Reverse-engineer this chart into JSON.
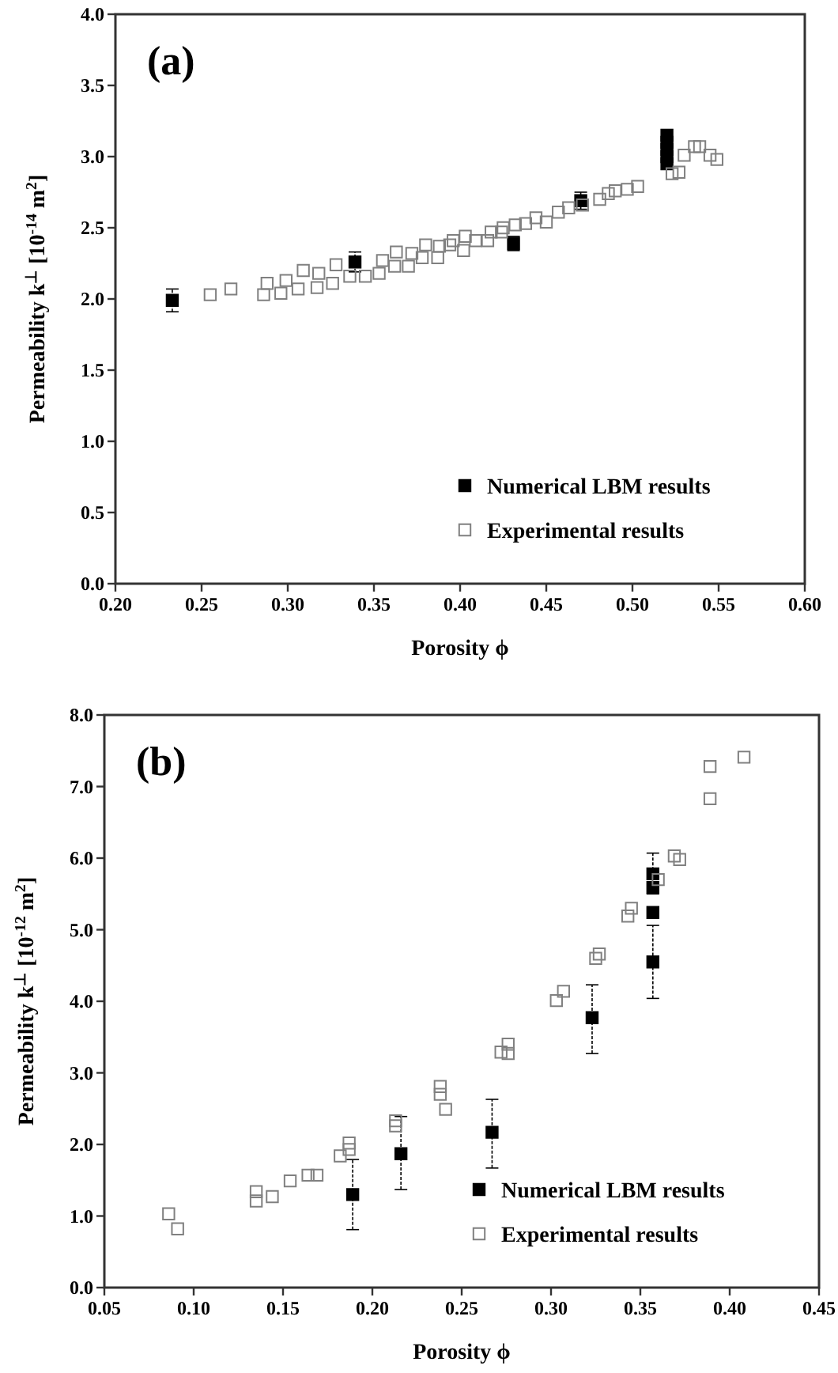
{
  "chart_data": [
    {
      "type": "scatter",
      "title": "(a)",
      "xlabel": "Porosity ϕ",
      "ylabel": "Permeability k$^{⊥}$ [10$^{-14}$ m$^{2}$]",
      "marker": "square",
      "legend": "bottom right",
      "grid": false,
      "xlim": [
        0.2,
        0.6
      ],
      "xticks": [
        {
          "value": 0.2,
          "label": "0.20"
        },
        {
          "value": 0.25,
          "label": "0.25"
        },
        {
          "value": 0.3,
          "label": "0.30"
        },
        {
          "value": 0.35,
          "label": "0.35"
        },
        {
          "value": 0.4,
          "label": "0.40"
        },
        {
          "value": 0.45,
          "label": "0.45"
        },
        {
          "value": 0.5,
          "label": "0.50"
        },
        {
          "value": 0.55,
          "label": "0.55"
        },
        {
          "value": 0.6,
          "label": "0.60"
        }
      ],
      "ylim": [
        0,
        4
      ],
      "yticks": [
        {
          "value": 0,
          "label": "0.0"
        },
        {
          "value": 0.5,
          "label": "0.5"
        },
        {
          "value": 1,
          "label": "1.0"
        },
        {
          "value": 1.5,
          "label": "1.5"
        },
        {
          "value": 2,
          "label": "2.0"
        },
        {
          "value": 2.5,
          "label": "2.5"
        },
        {
          "value": 3,
          "label": "3.0"
        },
        {
          "value": 3.5,
          "label": "3.5"
        },
        {
          "value": 4,
          "label": "4.0"
        }
      ],
      "series": [
        {
          "name": "Numerical LBM results",
          "color": "#000000",
          "x": [
            0.233,
            0.339,
            0.431,
            0.47,
            0.52,
            0.52,
            0.52,
            0.52,
            0.52
          ],
          "values": [
            1.99,
            2.26,
            2.39,
            2.69,
            3.15,
            3.1,
            3.05,
            3.0,
            2.95
          ],
          "errors": [
            0.08,
            0.07,
            0.05,
            0.06,
            null,
            null,
            null,
            null,
            null
          ]
        },
        {
          "name": "Experimental results",
          "color": "#808080",
          "x": [
            0.255,
            0.267,
            0.286,
            0.288,
            0.296,
            0.299,
            0.306,
            0.309,
            0.317,
            0.318,
            0.326,
            0.328,
            0.336,
            0.345,
            0.353,
            0.355,
            0.362,
            0.363,
            0.37,
            0.372,
            0.378,
            0.38,
            0.387,
            0.388,
            0.394,
            0.396,
            0.402,
            0.403,
            0.409,
            0.416,
            0.418,
            0.424,
            0.425,
            0.432,
            0.438,
            0.444,
            0.45,
            0.457,
            0.463,
            0.471,
            0.481,
            0.486,
            0.49,
            0.497,
            0.503,
            0.523,
            0.527,
            0.53,
            0.536,
            0.539,
            0.545,
            0.549
          ],
          "values": [
            2.03,
            2.07,
            2.03,
            2.11,
            2.04,
            2.13,
            2.07,
            2.2,
            2.08,
            2.18,
            2.11,
            2.24,
            2.16,
            2.16,
            2.18,
            2.27,
            2.23,
            2.33,
            2.23,
            2.32,
            2.29,
            2.38,
            2.29,
            2.37,
            2.38,
            2.41,
            2.34,
            2.44,
            2.41,
            2.41,
            2.47,
            2.47,
            2.5,
            2.52,
            2.53,
            2.57,
            2.54,
            2.61,
            2.64,
            2.66,
            2.7,
            2.74,
            2.76,
            2.77,
            2.79,
            2.88,
            2.89,
            3.01,
            3.07,
            3.07,
            3.01,
            2.98
          ]
        }
      ]
    },
    {
      "type": "scatter",
      "title": "(b)",
      "xlabel": "Porosity ϕ",
      "ylabel": "Permeability k$^{⊥}$ [10$^{-12}$ m$^{2}$]",
      "marker": "square",
      "legend": "bottom right",
      "grid": false,
      "xlim": [
        0.05,
        0.45
      ],
      "xticks": [
        {
          "value": 0.05,
          "label": "0.05"
        },
        {
          "value": 0.1,
          "label": "0.10"
        },
        {
          "value": 0.15,
          "label": "0.15"
        },
        {
          "value": 0.2,
          "label": "0.20"
        },
        {
          "value": 0.25,
          "label": "0.25"
        },
        {
          "value": 0.3,
          "label": "0.30"
        },
        {
          "value": 0.35,
          "label": "0.35"
        },
        {
          "value": 0.4,
          "label": "0.40"
        },
        {
          "value": 0.45,
          "label": "0.45"
        }
      ],
      "ylim": [
        0,
        8
      ],
      "yticks": [
        {
          "value": 0,
          "label": "0.0"
        },
        {
          "value": 1,
          "label": "1.0"
        },
        {
          "value": 2,
          "label": "2.0"
        },
        {
          "value": 3,
          "label": "3.0"
        },
        {
          "value": 4,
          "label": "4.0"
        },
        {
          "value": 5,
          "label": "5.0"
        },
        {
          "value": 6,
          "label": "6.0"
        },
        {
          "value": 7,
          "label": "7.0"
        },
        {
          "value": 8,
          "label": "8.0"
        }
      ],
      "series": [
        {
          "name": "Numerical LBM results",
          "color": "#000000",
          "x": [
            0.189,
            0.216,
            0.267,
            0.323,
            0.357,
            0.357,
            0.357,
            0.357
          ],
          "values": [
            1.3,
            1.87,
            2.17,
            3.77,
            4.55,
            5.24,
            5.59,
            5.78
          ],
          "errors": [
            [
              0.81,
              1.79
            ],
            [
              1.37,
              2.39
            ],
            [
              1.67,
              2.63
            ],
            [
              3.27,
              4.23
            ],
            [
              4.04,
              5.06
            ],
            null,
            null,
            [
              5.5,
              6.07
            ]
          ]
        },
        {
          "name": "Experimental results",
          "color": "#808080",
          "x": [
            0.086,
            0.091,
            0.135,
            0.135,
            0.144,
            0.154,
            0.164,
            0.169,
            0.182,
            0.187,
            0.187,
            0.213,
            0.213,
            0.238,
            0.238,
            0.241,
            0.272,
            0.276,
            0.276,
            0.303,
            0.307,
            0.325,
            0.327,
            0.343,
            0.345,
            0.36,
            0.369,
            0.372,
            0.389,
            0.389,
            0.408
          ],
          "values": [
            1.03,
            0.82,
            1.34,
            1.21,
            1.27,
            1.49,
            1.57,
            1.57,
            1.84,
            2.02,
            1.93,
            2.33,
            2.26,
            2.81,
            2.7,
            2.49,
            3.29,
            3.4,
            3.27,
            4.01,
            4.14,
            4.6,
            4.66,
            5.19,
            5.3,
            5.7,
            6.03,
            5.98,
            6.83,
            7.28,
            7.41
          ]
        }
      ]
    }
  ]
}
